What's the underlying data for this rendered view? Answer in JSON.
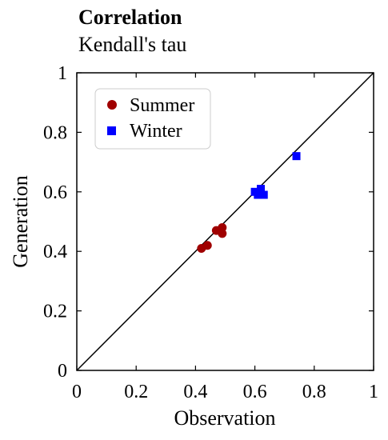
{
  "chart_data": {
    "type": "scatter",
    "title": "Correlation",
    "subtitle": "Kendall's tau",
    "xlabel": "Observation",
    "ylabel": "Generation",
    "xlim": [
      0,
      1
    ],
    "ylim": [
      0,
      1
    ],
    "xticks": [
      "0",
      "0.2",
      "0.4",
      "0.6",
      "0.8",
      "1"
    ],
    "yticks": [
      "0",
      "0.2",
      "0.4",
      "0.6",
      "0.8",
      "1"
    ],
    "grid": false,
    "legend_position": "top-left",
    "diagonal_line": true,
    "series": [
      {
        "name": "Summer",
        "marker": "circle",
        "color": "#a00000",
        "points": [
          {
            "x": 0.42,
            "y": 0.41
          },
          {
            "x": 0.44,
            "y": 0.42
          },
          {
            "x": 0.47,
            "y": 0.47
          },
          {
            "x": 0.49,
            "y": 0.48
          },
          {
            "x": 0.49,
            "y": 0.46
          }
        ]
      },
      {
        "name": "Winter",
        "marker": "square",
        "color": "#0000ff",
        "points": [
          {
            "x": 0.6,
            "y": 0.6
          },
          {
            "x": 0.61,
            "y": 0.59
          },
          {
            "x": 0.62,
            "y": 0.61
          },
          {
            "x": 0.63,
            "y": 0.59
          },
          {
            "x": 0.74,
            "y": 0.72
          }
        ]
      }
    ]
  }
}
